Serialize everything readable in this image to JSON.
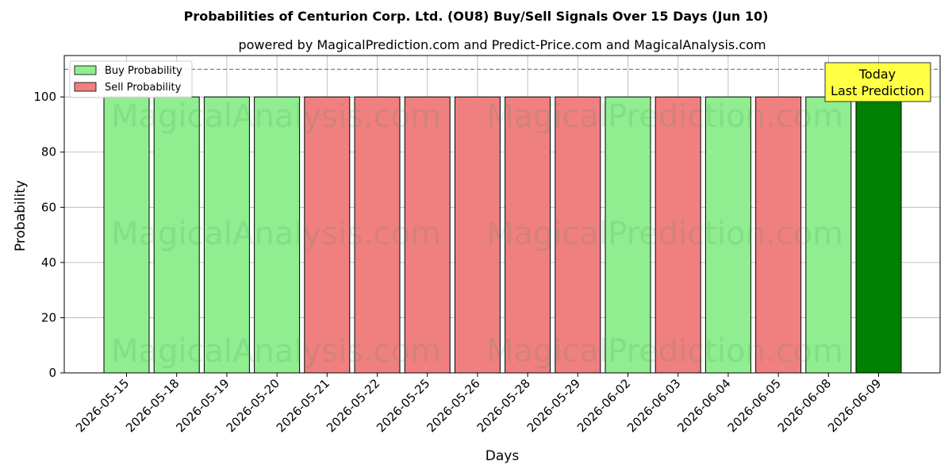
{
  "chart_data": {
    "type": "bar",
    "title": "Probabilities of Centurion Corp. Ltd. (OU8) Buy/Sell Signals Over 15 Days (Jun 10)",
    "subtitle": "powered by MagicalPrediction.com and Predict-Price.com and MagicalAnalysis.com",
    "xlabel": "Days",
    "ylabel": "Probability",
    "ylim": [
      0,
      115
    ],
    "yticks": [
      0,
      20,
      40,
      60,
      80,
      100
    ],
    "grid": true,
    "legend_position": "top-left",
    "threshold_line": 110,
    "categories": [
      "2026-05-15",
      "2026-05-18",
      "2026-05-19",
      "2026-05-20",
      "2026-05-21",
      "2026-05-22",
      "2026-05-25",
      "2026-05-26",
      "2026-05-28",
      "2026-05-29",
      "2026-06-02",
      "2026-06-03",
      "2026-06-04",
      "2026-06-05",
      "2026-06-08",
      "2026-06-09"
    ],
    "values": [
      100,
      100,
      100,
      100,
      100,
      100,
      100,
      100,
      100,
      100,
      100,
      100,
      100,
      100,
      100,
      100
    ],
    "signals": [
      "buy",
      "buy",
      "buy",
      "buy",
      "sell",
      "sell",
      "sell",
      "sell",
      "sell",
      "sell",
      "buy",
      "sell",
      "buy",
      "sell",
      "buy",
      "today"
    ],
    "series": [
      {
        "name": "Buy Probability",
        "color": "#90ee90"
      },
      {
        "name": "Sell Probability",
        "color": "#f08080"
      }
    ],
    "today_color": "#008000",
    "annotation": {
      "line1": "Today",
      "line2": "Last Prediction",
      "color": "#ffff44"
    },
    "watermarks": [
      "MagicalAnalysis.com",
      "MagicalPrediction.com"
    ]
  }
}
